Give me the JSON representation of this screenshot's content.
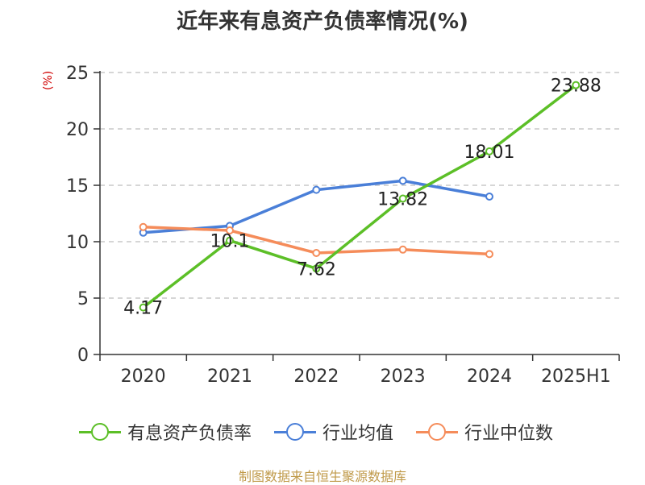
{
  "title": "近年来有息资产负债率情况(%)",
  "ylabel": "(%)",
  "source": "制图数据来自恒生聚源数据库",
  "chart_data": {
    "type": "line",
    "categories": [
      "2020",
      "2021",
      "2022",
      "2023",
      "2024",
      "2025H1"
    ],
    "ylim": [
      0,
      25
    ],
    "yticks": [
      0,
      5,
      10,
      15,
      20,
      25
    ],
    "grid": true,
    "legend_position": "bottom",
    "series": [
      {
        "name": "有息资产负债率",
        "color": "#5cbf27",
        "values": [
          4.17,
          10.1,
          7.62,
          13.82,
          18.01,
          23.88
        ],
        "labels": [
          "4.17",
          "10.1",
          "7.62",
          "13.82",
          "18.01",
          "23.88"
        ]
      },
      {
        "name": "行业均值",
        "color": "#4a7fd8",
        "values": [
          10.8,
          11.4,
          14.6,
          15.4,
          14.0,
          null
        ]
      },
      {
        "name": "行业中位数",
        "color": "#f58c5a",
        "values": [
          11.3,
          11.0,
          9.0,
          9.3,
          8.9,
          null
        ]
      }
    ]
  }
}
